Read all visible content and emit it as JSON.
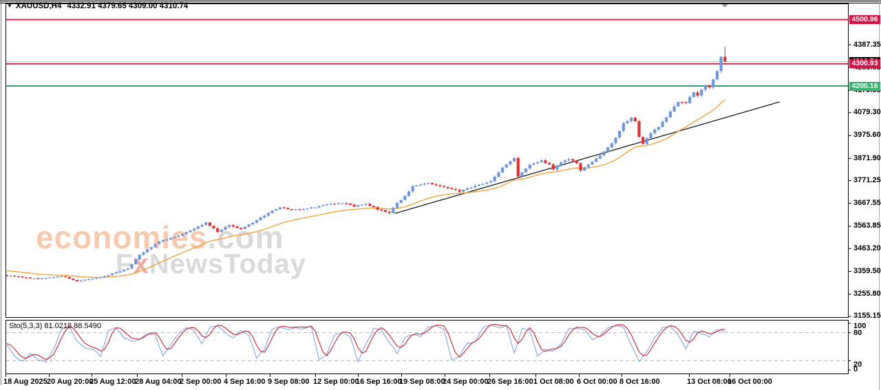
{
  "header": {
    "symbol_period": "XAUUSD,H4",
    "quote_line": "4332.91 4379.65 4309.00 4310.74"
  },
  "watermark": {
    "brand": "economies",
    "domain": ".com",
    "tagline_f": "F",
    "tagline_x": "x",
    "tagline_rest": "NewsToday"
  },
  "price_axis": {
    "ticks": [
      {
        "label": "4387.35",
        "price": 4387.35
      },
      {
        "label": "4283.65",
        "price": 4283.65
      },
      {
        "label": "4179.95",
        "price": 4179.95
      },
      {
        "label": "4079.30",
        "price": 4079.3
      },
      {
        "label": "3975.60",
        "price": 3975.6
      },
      {
        "label": "3871.90",
        "price": 3871.9
      },
      {
        "label": "3771.25",
        "price": 3771.25
      },
      {
        "label": "3667.55",
        "price": 3667.55
      },
      {
        "label": "3563.85",
        "price": 3563.85
      },
      {
        "label": "3463.20",
        "price": 3463.2
      },
      {
        "label": "3359.50",
        "price": 3359.5
      },
      {
        "label": "3255.80",
        "price": 3255.8
      },
      {
        "label": "3155.15",
        "price": 3155.15
      }
    ]
  },
  "levels": [
    {
      "label": "4500.96",
      "price": 4500.96,
      "style": "red",
      "has_line": true
    },
    {
      "label": "4310.74",
      "price": 4310.74,
      "style": "black",
      "has_line": false
    },
    {
      "label": "4300.93",
      "price": 4300.93,
      "style": "red",
      "has_line": true
    },
    {
      "label": "4200.16",
      "price": 4200.16,
      "style": "green",
      "has_line": true
    }
  ],
  "time_axis": {
    "labels": [
      {
        "text": "18 Aug 2025",
        "x": 5
      },
      {
        "text": "20 Aug 20:00",
        "x": 68
      },
      {
        "text": "25 Aug 12:00",
        "x": 130
      },
      {
        "text": "28 Aug 04:00",
        "x": 196
      },
      {
        "text": "2 Sep 00:00",
        "x": 261
      },
      {
        "text": "4 Sep 16:00",
        "x": 325
      },
      {
        "text": "9 Sep 08:00",
        "x": 389
      },
      {
        "text": "12 Sep 00:00",
        "x": 455
      },
      {
        "text": "16 Sep 16:00",
        "x": 517
      },
      {
        "text": "19 Sep 08:00",
        "x": 580
      },
      {
        "text": "24 Sep 00:00",
        "x": 643
      },
      {
        "text": "26 Sep 16:00",
        "x": 708
      },
      {
        "text": "1 Oct 08:00",
        "x": 775
      },
      {
        "text": "6 Oct 00:00",
        "x": 838
      },
      {
        "text": "8 Oct 16:00",
        "x": 900
      },
      {
        "text": "13 Oct 08:00",
        "x": 998
      },
      {
        "text": "16 Oct 00:00",
        "x": 1057
      }
    ]
  },
  "indicator": {
    "label": "Sto(5,3,3) 81.0218 88.5490",
    "name": "Stochastic",
    "params": "5,3,3",
    "main_value": "81.0218",
    "signal_value": "88.5490",
    "scale_labels": [
      {
        "text": "100",
        "value": 100
      },
      {
        "text": "80",
        "value": 80
      },
      {
        "text": "20",
        "value": 20
      },
      {
        "text": "0",
        "value": 0
      }
    ],
    "dashed_levels": [
      80,
      20
    ]
  },
  "chart_data": {
    "type": "candlestick",
    "symbol": "XAUUSD",
    "timeframe": "H4",
    "bars": 185,
    "visible_price_range": [
      3155.15,
      4500.96
    ],
    "x_range": [
      "18 Aug 2025",
      "16 Oct 00:00"
    ],
    "grid": false,
    "close_keypoints": [
      [
        0,
        3340
      ],
      [
        8,
        3325
      ],
      [
        14,
        3338
      ],
      [
        18,
        3315
      ],
      [
        24,
        3332
      ],
      [
        31,
        3372
      ],
      [
        34,
        3435
      ],
      [
        39,
        3495
      ],
      [
        44,
        3522
      ],
      [
        51,
        3580
      ],
      [
        54,
        3540
      ],
      [
        57,
        3568
      ],
      [
        60,
        3552
      ],
      [
        63,
        3580
      ],
      [
        67,
        3625
      ],
      [
        70,
        3650
      ],
      [
        73,
        3638
      ],
      [
        79,
        3650
      ],
      [
        82,
        3663
      ],
      [
        86,
        3670
      ],
      [
        89,
        3655
      ],
      [
        92,
        3666
      ],
      [
        95,
        3640
      ],
      [
        98,
        3625
      ],
      [
        100,
        3670
      ],
      [
        102,
        3700
      ],
      [
        104,
        3745
      ],
      [
        108,
        3758
      ],
      [
        111,
        3748
      ],
      [
        116,
        3722
      ],
      [
        120,
        3748
      ],
      [
        124,
        3768
      ],
      [
        127,
        3830
      ],
      [
        130,
        3872
      ],
      [
        131,
        3788
      ],
      [
        132,
        3810
      ],
      [
        134,
        3845
      ],
      [
        137,
        3862
      ],
      [
        139,
        3842
      ],
      [
        140,
        3820
      ],
      [
        142,
        3852
      ],
      [
        144,
        3870
      ],
      [
        146,
        3848
      ],
      [
        147,
        3815
      ],
      [
        149,
        3845
      ],
      [
        152,
        3885
      ],
      [
        154,
        3920
      ],
      [
        156,
        3965
      ],
      [
        158,
        4030
      ],
      [
        160,
        4056
      ],
      [
        161,
        4040
      ],
      [
        162,
        3968
      ],
      [
        163,
        3940
      ],
      [
        165,
        3988
      ],
      [
        167,
        4015
      ],
      [
        169,
        4060
      ],
      [
        171,
        4105
      ],
      [
        172,
        4130
      ],
      [
        174,
        4120
      ],
      [
        175,
        4150
      ],
      [
        176,
        4170
      ],
      [
        177,
        4155
      ],
      [
        178,
        4185
      ],
      [
        179,
        4205
      ],
      [
        180,
        4195
      ],
      [
        181,
        4230
      ],
      [
        182,
        4268
      ],
      [
        183,
        4333
      ],
      [
        184,
        4310.74
      ]
    ],
    "last_bar": {
      "o": 4332.91,
      "h": 4379.65,
      "l": 4309.0,
      "c": 4310.74
    },
    "moving_average": {
      "style": "orange-line",
      "start_offset": 26,
      "alpha": 0.08
    },
    "trendline": {
      "i1": 99.4,
      "p1": 3622,
      "i2": 198,
      "p2": 4128
    },
    "stochastic_keypoints": [
      [
        0,
        55
      ],
      [
        2,
        30
      ],
      [
        4,
        18
      ],
      [
        6,
        35
      ],
      [
        8,
        22
      ],
      [
        10,
        17
      ],
      [
        12,
        45
      ],
      [
        14,
        88
      ],
      [
        16,
        92
      ],
      [
        18,
        60
      ],
      [
        20,
        48
      ],
      [
        22,
        45
      ],
      [
        24,
        30
      ],
      [
        26,
        85
      ],
      [
        28,
        90
      ],
      [
        30,
        70
      ],
      [
        32,
        62
      ],
      [
        34,
        65
      ],
      [
        36,
        80
      ],
      [
        38,
        75
      ],
      [
        40,
        30
      ],
      [
        42,
        55
      ],
      [
        44,
        78
      ],
      [
        46,
        90
      ],
      [
        48,
        85
      ],
      [
        50,
        55
      ],
      [
        52,
        92
      ],
      [
        54,
        95
      ],
      [
        56,
        78
      ],
      [
        58,
        70
      ],
      [
        60,
        85
      ],
      [
        62,
        75
      ],
      [
        64,
        25
      ],
      [
        66,
        45
      ],
      [
        68,
        88
      ],
      [
        70,
        92
      ],
      [
        72,
        88
      ],
      [
        74,
        90
      ],
      [
        76,
        88
      ],
      [
        78,
        92
      ],
      [
        80,
        20
      ],
      [
        82,
        35
      ],
      [
        84,
        75
      ],
      [
        86,
        80
      ],
      [
        88,
        70
      ],
      [
        90,
        18
      ],
      [
        92,
        55
      ],
      [
        94,
        88
      ],
      [
        96,
        85
      ],
      [
        98,
        60
      ],
      [
        100,
        35
      ],
      [
        102,
        70
      ],
      [
        104,
        75
      ],
      [
        106,
        72
      ],
      [
        108,
        92
      ],
      [
        110,
        95
      ],
      [
        112,
        88
      ],
      [
        114,
        20
      ],
      [
        116,
        30
      ],
      [
        118,
        58
      ],
      [
        120,
        60
      ],
      [
        122,
        92
      ],
      [
        124,
        95
      ],
      [
        126,
        90
      ],
      [
        128,
        95
      ],
      [
        130,
        35
      ],
      [
        132,
        88
      ],
      [
        134,
        85
      ],
      [
        136,
        30
      ],
      [
        138,
        45
      ],
      [
        140,
        40
      ],
      [
        142,
        55
      ],
      [
        144,
        88
      ],
      [
        146,
        90
      ],
      [
        148,
        88
      ],
      [
        150,
        65
      ],
      [
        152,
        72
      ],
      [
        154,
        92
      ],
      [
        156,
        95
      ],
      [
        158,
        90
      ],
      [
        160,
        55
      ],
      [
        162,
        18
      ],
      [
        164,
        40
      ],
      [
        166,
        70
      ],
      [
        168,
        92
      ],
      [
        170,
        94
      ],
      [
        172,
        75
      ],
      [
        174,
        45
      ],
      [
        176,
        82
      ],
      [
        178,
        78
      ],
      [
        180,
        72
      ],
      [
        182,
        86
      ],
      [
        184,
        82
      ]
    ]
  },
  "colors": {
    "bull": "#7096dc",
    "bear": "#dd3333",
    "ma": "#f2a23c",
    "trendline": "#1a1a1a",
    "level_red": "#c72e52",
    "level_green": "#33a06f",
    "current_price_line": "#c4c4c4",
    "badge_red": "#d01746",
    "badge_green": "#3cb371",
    "badge_black": "#000000",
    "sto_main": "#8fabdf",
    "sto_signal": "#cc2e3e",
    "watermark_brand": "#f7c9ae",
    "watermark_gray": "#dadada",
    "watermark_x": "#f0ada6"
  }
}
